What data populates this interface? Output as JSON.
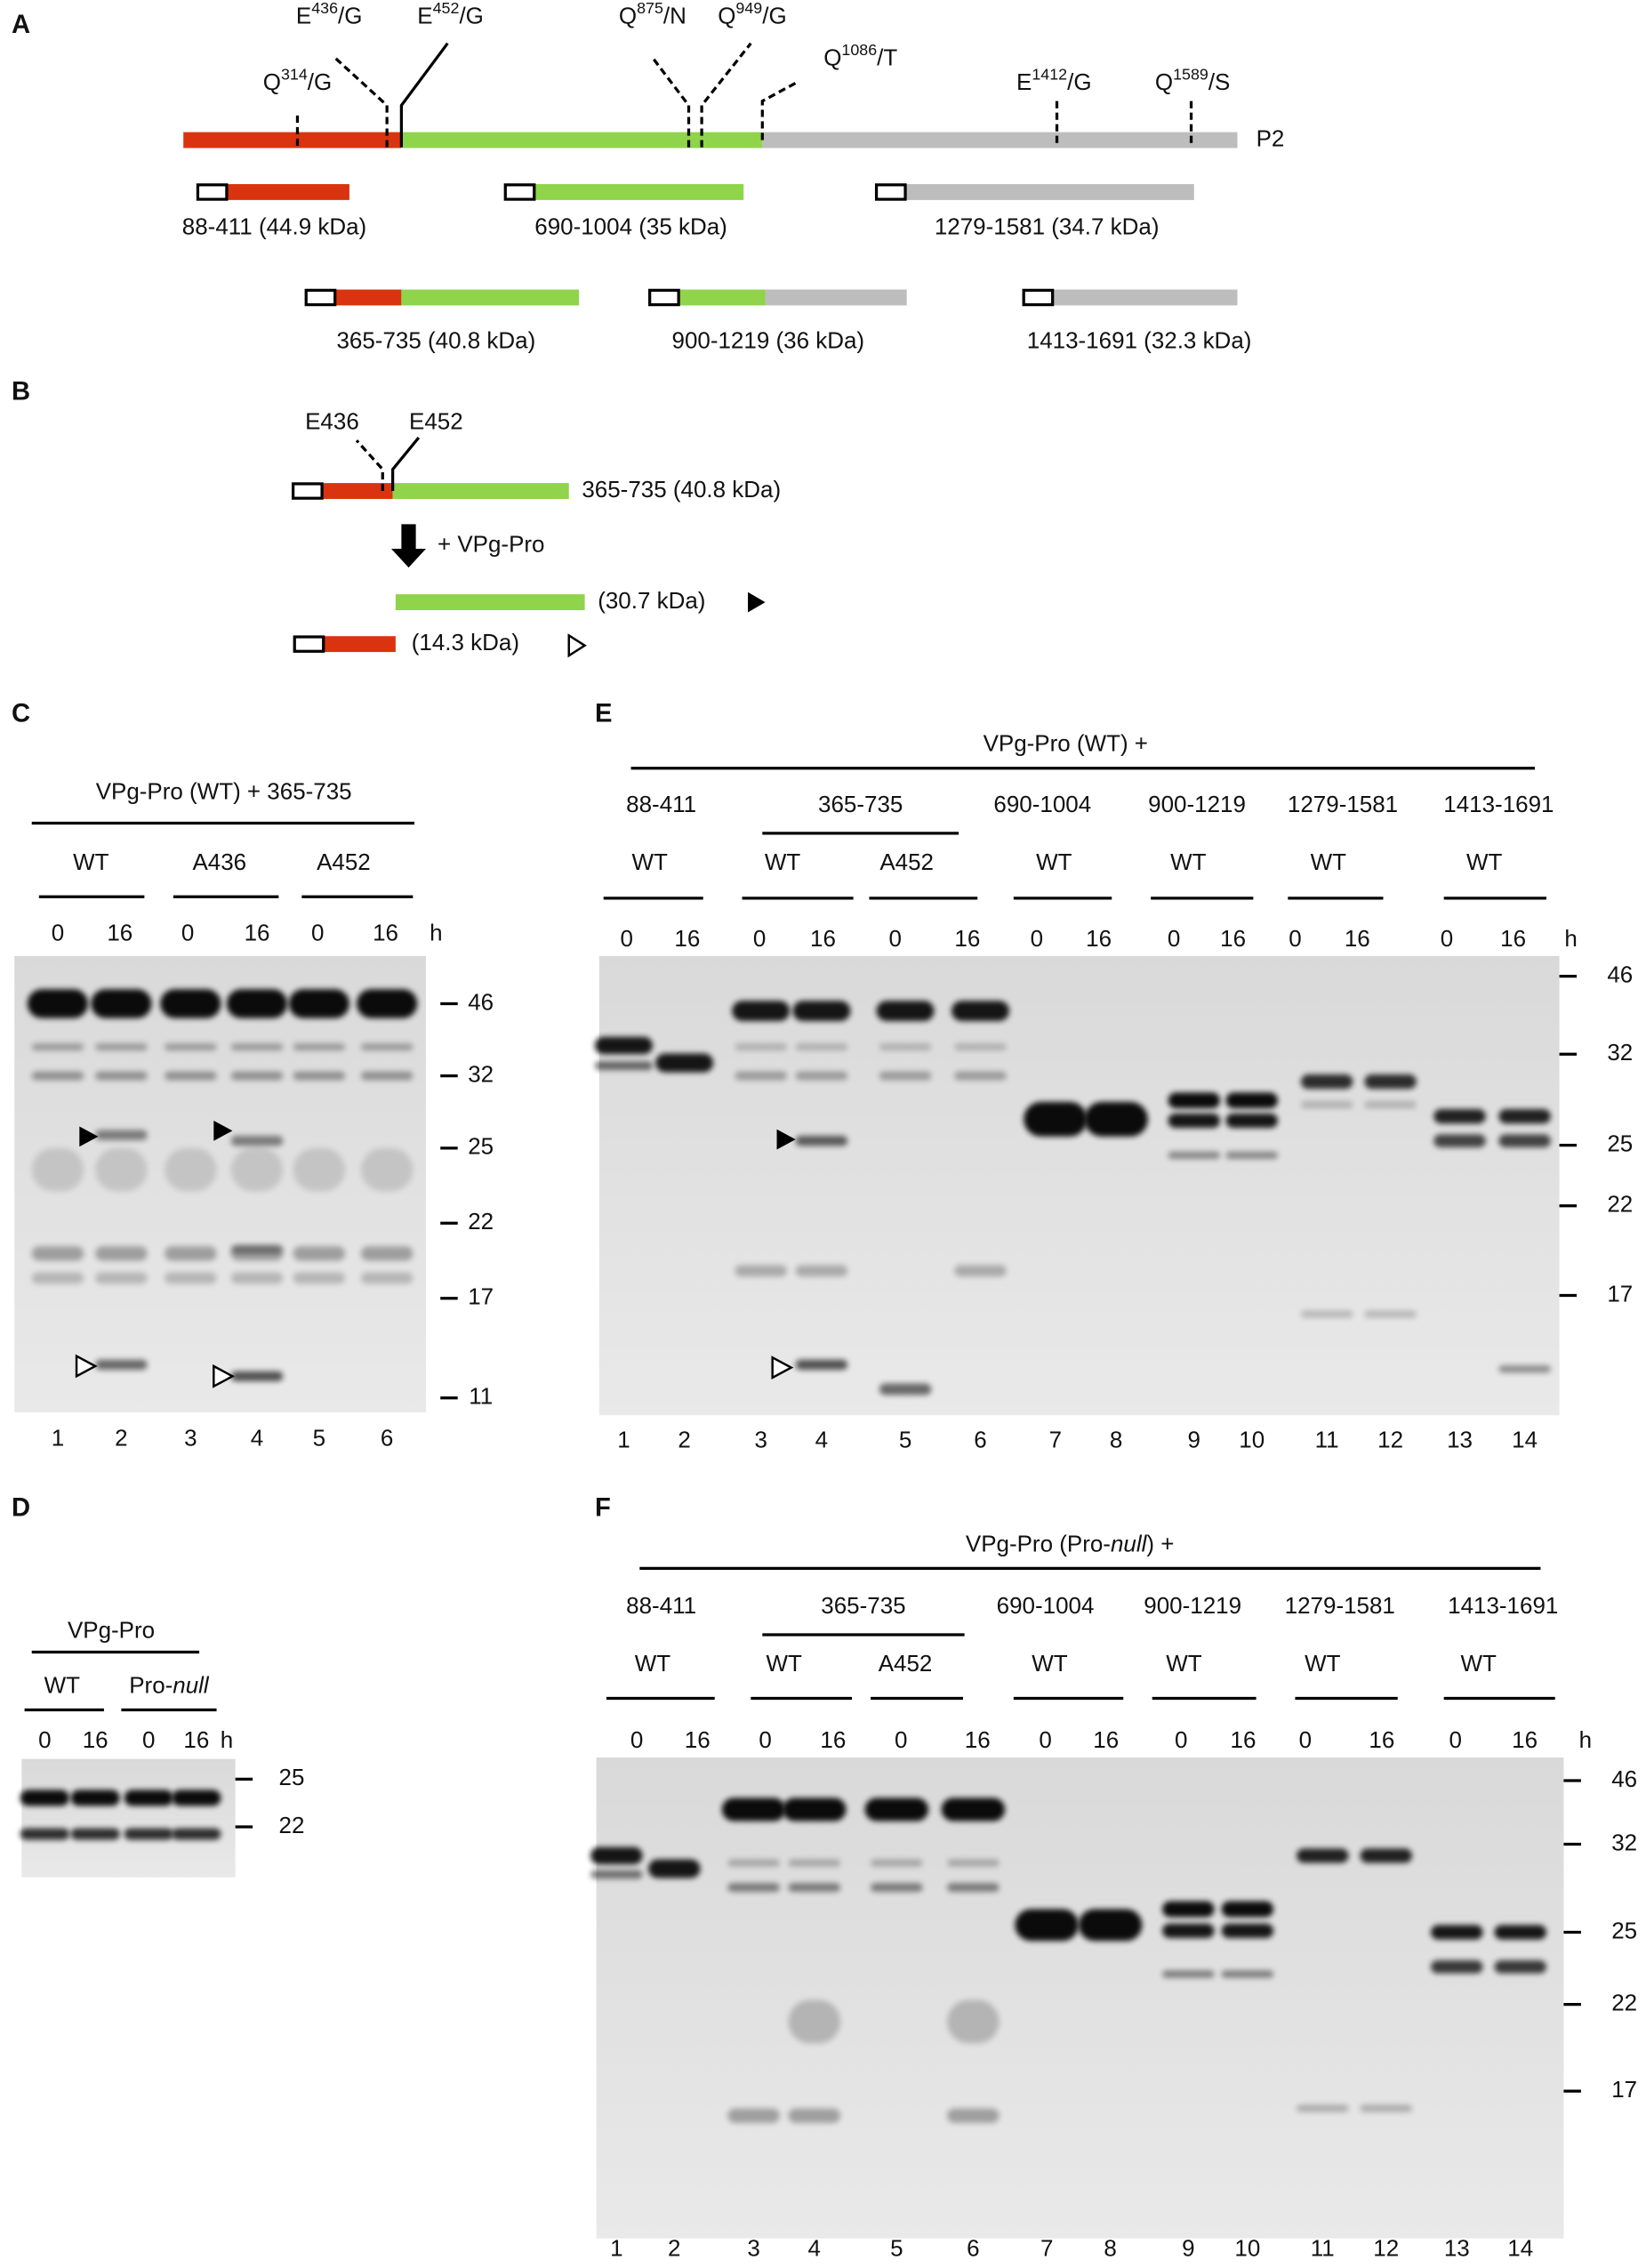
{
  "panel_a": {
    "label": "A",
    "sites": [
      {
        "residue": "Q",
        "position": "314",
        "cleavage": "/G"
      },
      {
        "residue": "E",
        "position": "436",
        "cleavage": "/G"
      },
      {
        "residue": "E",
        "position": "452",
        "cleavage": "/G"
      },
      {
        "residue": "Q",
        "position": "875",
        "cleavage": "/N"
      },
      {
        "residue": "Q",
        "position": "949",
        "cleavage": "/G"
      },
      {
        "residue": "Q",
        "position": "1086",
        "cleavage": "/T"
      },
      {
        "residue": "E",
        "position": "1412",
        "cleavage": "/G"
      },
      {
        "residue": "Q",
        "position": "1589",
        "cleavage": "/S"
      }
    ],
    "protein": "P2",
    "fragments": [
      "88-411 (44.9 kDa)",
      "690-1004 (35 kDa)",
      "1279-1581 (34.7 kDa)",
      "365-735 (40.8 kDa)",
      "900-1219 (36 kDa)",
      "1413-1691 (32.3 kDa)"
    ]
  },
  "panel_b": {
    "label": "B",
    "sites": [
      "E436",
      "E452"
    ],
    "construct": "365-735 (40.8 kDa)",
    "treatment": "+ VPg-Pro",
    "products": [
      "(30.7 kDa)",
      "(14.3 kDa)"
    ]
  },
  "panel_c": {
    "label": "C",
    "title": "VPg-Pro (WT) + 365-735",
    "groups": [
      "WT",
      "A436",
      "A452"
    ],
    "times": [
      "0",
      "16",
      "0",
      "16",
      "0",
      "16"
    ],
    "time_unit": "h",
    "markers": [
      "46",
      "32",
      "25",
      "22",
      "17",
      "11"
    ],
    "lanes": [
      "1",
      "2",
      "3",
      "4",
      "5",
      "6"
    ]
  },
  "panel_d": {
    "label": "D",
    "title": "VPg-Pro",
    "groups": [
      "WT",
      {
        "text": "Pro-",
        "italic": "null"
      }
    ],
    "times": [
      "0",
      "16",
      "0",
      "16"
    ],
    "time_unit": "h",
    "markers": [
      "25",
      "22"
    ]
  },
  "panel_e": {
    "label": "E",
    "title": "VPg-Pro (WT)  +",
    "constructs": [
      "88-411",
      "365-735",
      "690-1004",
      "900-1219",
      "1279-1581",
      "1413-1691"
    ],
    "groups": [
      "WT",
      "WT",
      "A452",
      "WT",
      "WT",
      "WT",
      "WT"
    ],
    "times": [
      "0",
      "16",
      "0",
      "16",
      "0",
      "16",
      "0",
      "16",
      "0",
      "16",
      "0",
      "16",
      "0",
      "16"
    ],
    "time_unit": "h",
    "markers": [
      "46",
      "32",
      "25",
      "22",
      "17"
    ],
    "lanes": [
      "1",
      "2",
      "3",
      "4",
      "5",
      "6",
      "7",
      "8",
      "9",
      "10",
      "11",
      "12",
      "13",
      "14"
    ]
  },
  "panel_f": {
    "label": "F",
    "title": {
      "before": "VPg-Pro (Pro-",
      "italic": "null",
      "after": ")  +"
    },
    "constructs": [
      "88-411",
      "365-735",
      "690-1004",
      "900-1219",
      "1279-1581",
      "1413-1691"
    ],
    "groups": [
      "WT",
      "WT",
      "A452",
      "WT",
      "WT",
      "WT",
      "WT"
    ],
    "times": [
      "0",
      "16",
      "0",
      "16",
      "0",
      "16",
      "0",
      "16",
      "0",
      "16",
      "0",
      "16",
      "0",
      "16"
    ],
    "time_unit": "h",
    "markers": [
      "46",
      "32",
      "25",
      "22",
      "17"
    ],
    "lanes": [
      "1",
      "2",
      "3",
      "4",
      "5",
      "6",
      "7",
      "8",
      "9",
      "10",
      "11",
      "12",
      "13",
      "14"
    ]
  }
}
